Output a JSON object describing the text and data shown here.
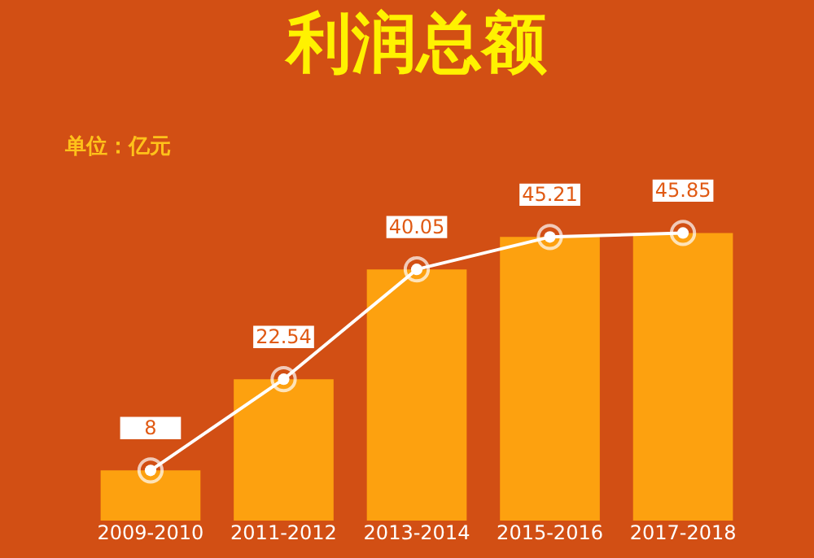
{
  "chart_data": {
    "type": "bar",
    "title": "利润总额",
    "annotations": [
      "单位：亿元"
    ],
    "categories": [
      "2009-2010",
      "2011-2012",
      "2013-2014",
      "2015-2016",
      "2017-2018"
    ],
    "series": [
      {
        "color": "#fda10f",
        "values": [
          8,
          22.54,
          40.05,
          45.21,
          45.85
        ]
      },
      {
        "type": "line",
        "color": "#ffffff",
        "values": [
          8,
          22.54,
          40.05,
          45.21,
          45.85
        ],
        "value_labels": [
          "8",
          "22.54",
          "40.05",
          "45.21",
          "45.85"
        ]
      }
    ],
    "marker": "circle",
    "grid": false,
    "tick_labels": "x"
  }
}
